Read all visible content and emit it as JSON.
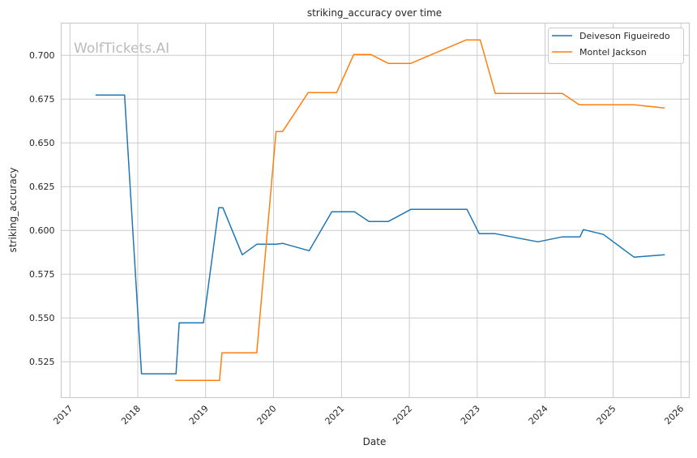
{
  "chart_data": {
    "type": "line",
    "title": "striking_accuracy over time",
    "xlabel": "Date",
    "ylabel": "striking_accuracy",
    "watermark": "WolfTickets.AI",
    "xlim": [
      "2016-11-15",
      "2026-02-15"
    ],
    "ylim": [
      0.5045,
      0.7184
    ],
    "x_ticks": [
      "2017",
      "2018",
      "2019",
      "2020",
      "2021",
      "2022",
      "2023",
      "2024",
      "2025",
      "2026"
    ],
    "y_ticks": [
      "0.525",
      "0.550",
      "0.575",
      "0.600",
      "0.625",
      "0.650",
      "0.675",
      "0.700"
    ],
    "grid": true,
    "legend_position": "top-right",
    "series": [
      {
        "name": "Deiveson Figueiredo",
        "color": "#1f77b4",
        "x": [
          "2017-05-19",
          "2017-10-22",
          "2018-01-21",
          "2018-07-26",
          "2018-08-12",
          "2018-12-20",
          "2019-03-13",
          "2019-04-04",
          "2019-07-17",
          "2019-10-03",
          "2020-01-15",
          "2020-02-19",
          "2020-07-11",
          "2020-11-10",
          "2021-03-12",
          "2021-05-29",
          "2021-09-10",
          "2022-01-09",
          "2022-11-07",
          "2023-01-12",
          "2023-04-08",
          "2023-11-24",
          "2024-04-03",
          "2024-07-07",
          "2024-07-25",
          "2024-11-10",
          "2025-04-24",
          "2025-10-06"
        ],
        "y": [
          0.6773,
          0.6773,
          0.5181,
          0.5181,
          0.5472,
          0.5472,
          0.613,
          0.613,
          0.5861,
          0.5921,
          0.5921,
          0.5926,
          0.5884,
          0.6106,
          0.6106,
          0.6051,
          0.6051,
          0.612,
          0.612,
          0.5981,
          0.5981,
          0.5935,
          0.5963,
          0.5963,
          0.6005,
          0.5977,
          0.5847,
          0.5861
        ]
      },
      {
        "name": "Montel Jackson",
        "color": "#ff7f0e",
        "x": [
          "2018-07-22",
          "2019-03-17",
          "2019-03-30",
          "2019-10-03",
          "2020-01-15",
          "2020-02-19",
          "2020-07-06",
          "2020-12-06",
          "2021-03-08",
          "2021-06-07",
          "2021-09-10",
          "2022-01-09",
          "2022-11-03",
          "2023-01-17",
          "2023-04-08",
          "2024-04-03",
          "2024-07-03",
          "2025-04-24",
          "2025-10-06"
        ],
        "y": [
          0.5143,
          0.5143,
          0.5301,
          0.5301,
          0.6565,
          0.6565,
          0.6787,
          0.6787,
          0.7005,
          0.7005,
          0.6954,
          0.6954,
          0.7088,
          0.7088,
          0.6782,
          0.6782,
          0.6718,
          0.6718,
          0.6699
        ]
      }
    ]
  }
}
